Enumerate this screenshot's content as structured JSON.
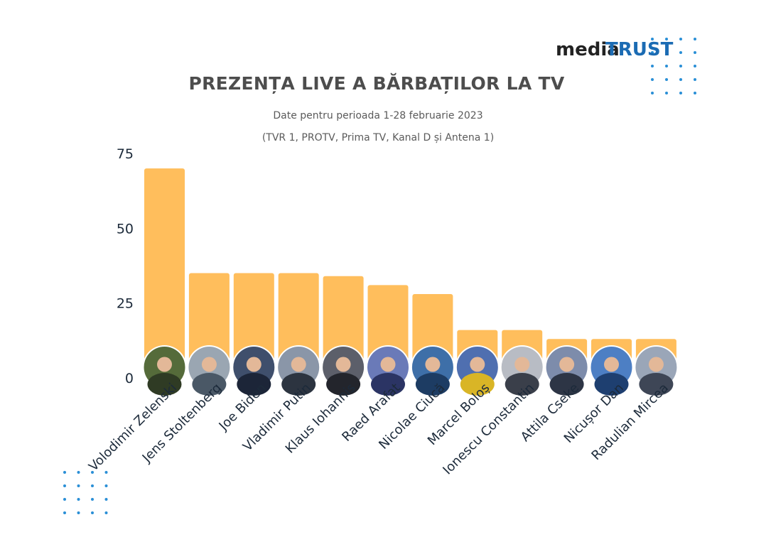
{
  "logo": {
    "part1": "media",
    "part2": "TRUST"
  },
  "chart_data": {
    "type": "bar",
    "title": "PREZENȚA LIVE A BĂRBAȚILOR LA TV",
    "subtitle": "Date pentru perioada 1-28 februarie 2023",
    "subtitle2": "(TVR 1, PROTV, Prima TV, Kanal D și Antena 1)",
    "categories": [
      "Volodimir Zelenski",
      "Jens Stoltenberg",
      "Joe Biden",
      "Vladimir Putin",
      "Klaus Iohannis",
      "Raed Arafat",
      "Nicolae Ciucă",
      "Marcel Boloș",
      "Ionescu Constantin",
      "Attila Cseke",
      "Nicușor Dan",
      "Radulian Mircea"
    ],
    "values": [
      70,
      35,
      35,
      35,
      34,
      31,
      28,
      16,
      16,
      13,
      13,
      13
    ],
    "ylim": [
      0,
      75
    ],
    "yticks": [
      0,
      25,
      50,
      75
    ],
    "yticklabels": [
      "0",
      "25",
      "50",
      "75"
    ],
    "grid": false,
    "legend": "none",
    "xlabel": "",
    "ylabel": ""
  },
  "colors": {
    "bar": "#ffbe5c",
    "accent": "#1b6bb3",
    "dots": "#2a8fd6"
  }
}
